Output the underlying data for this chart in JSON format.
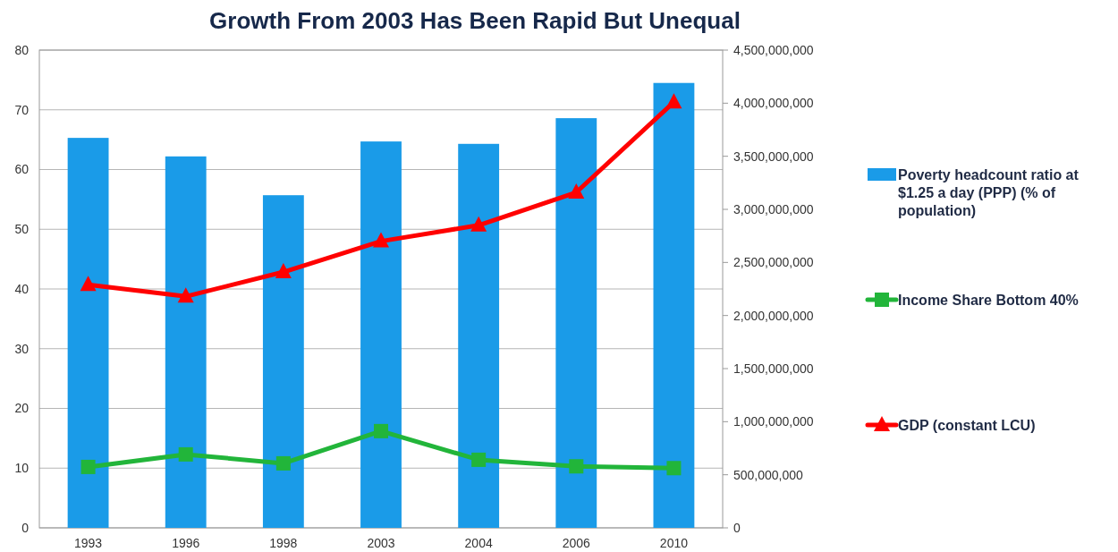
{
  "chart_data": {
    "type": "bar",
    "title": "Growth From 2003 Has Been Rapid But Unequal",
    "categories": [
      "1993",
      "1996",
      "1998",
      "2003",
      "2004",
      "2006",
      "2010"
    ],
    "series": [
      {
        "name": "Poverty headcount ratio at $1.25 a day (PPP) (% of population)",
        "color": "#1a9be8",
        "values": [
          65.3,
          62.2,
          55.7,
          64.7,
          64.3,
          68.6,
          74.5
        ]
      },
      {
        "name": "Income Share Bottom 40%",
        "type": "line",
        "color": "#22b53a",
        "marker": "square",
        "values": [
          10.2,
          12.3,
          10.8,
          16.2,
          11.4,
          10.3,
          10.0
        ]
      },
      {
        "name": "GDP (constant LCU)",
        "type": "line",
        "color": "#ff0000",
        "marker": "triangle",
        "axis": "y2",
        "values": [
          2290000000,
          2180000000,
          2410000000,
          2700000000,
          2850000000,
          3160000000,
          4010000000
        ]
      }
    ],
    "ylim": [
      0,
      80
    ],
    "yticks": [
      0,
      10,
      20,
      30,
      40,
      50,
      60,
      70,
      80
    ],
    "y2lim": [
      0,
      4500000000
    ],
    "y2ticks": [
      0,
      {
        "value": 500000000,
        "label": "500,000,000"
      },
      {
        "value": 1000000000,
        "label": "1,000,000,000"
      },
      {
        "value": 1500000000,
        "label": "1,500,000,000"
      },
      {
        "value": 2000000000,
        "label": "2,000,000,000"
      },
      {
        "value": 2500000000,
        "label": "2,500,000,000"
      },
      {
        "value": 3000000000,
        "label": "3,000,000,000"
      },
      {
        "value": 3500000000,
        "label": "3,500,000,000"
      },
      {
        "value": 4000000000,
        "label": "4,000,000,000"
      },
      {
        "value": 4500000000,
        "label": "4,500,000,000"
      }
    ],
    "grid": "y",
    "legend": "right"
  }
}
